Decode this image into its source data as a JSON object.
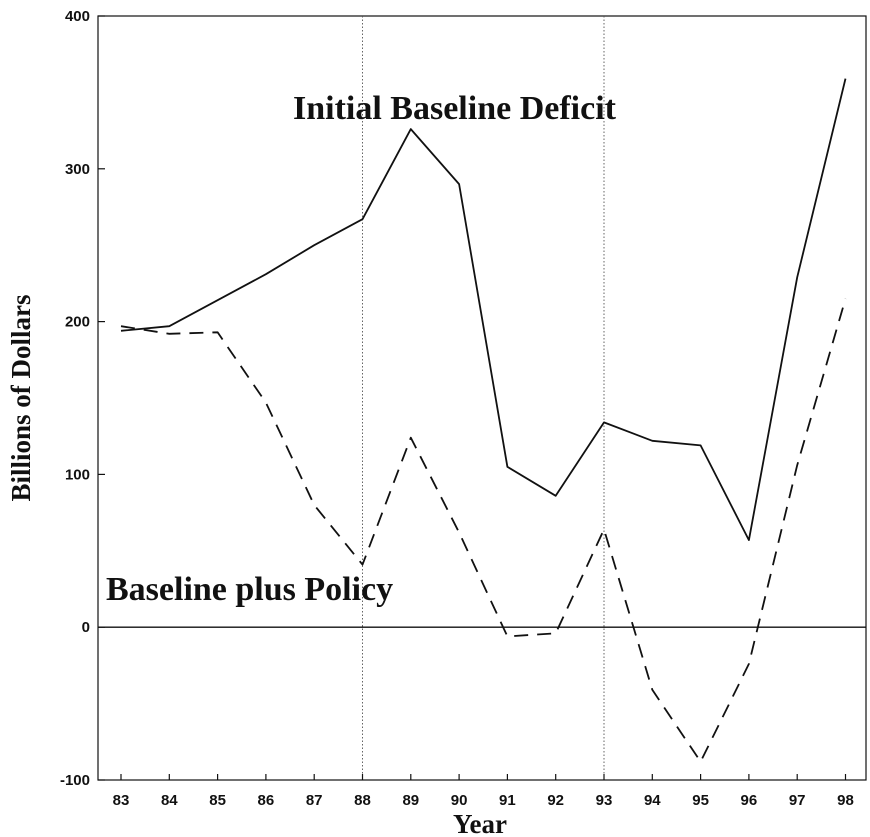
{
  "chart_data": {
    "type": "line",
    "xlabel": "Year",
    "ylabel": "Billions of Dollars",
    "x": [
      "83",
      "84",
      "85",
      "86",
      "87",
      "88",
      "89",
      "90",
      "91",
      "92",
      "93",
      "94",
      "95",
      "96",
      "97",
      "98"
    ],
    "ylim": [
      -100,
      400
    ],
    "yticks": [
      "400",
      "300",
      "200",
      "100",
      "0",
      "-100"
    ],
    "yticks_values": [
      400,
      300,
      200,
      100,
      0,
      -100
    ],
    "reference_years": [
      "88",
      "93"
    ],
    "series": [
      {
        "name": "Initial Baseline Deficit",
        "style": "solid",
        "values": [
          194,
          197,
          214,
          231,
          250,
          267,
          326,
          290,
          105,
          86,
          134,
          122,
          119,
          57,
          229,
          359
        ]
      },
      {
        "name": "Baseline plus Policy",
        "style": "dashed",
        "values": [
          197,
          192,
          193,
          147,
          80,
          41,
          124,
          62,
          -6,
          -4,
          64,
          -41,
          -88,
          -24,
          106,
          215
        ]
      }
    ],
    "annotations": [
      "Initial Baseline Deficit",
      "Baseline plus Policy"
    ],
    "grid": false
  }
}
